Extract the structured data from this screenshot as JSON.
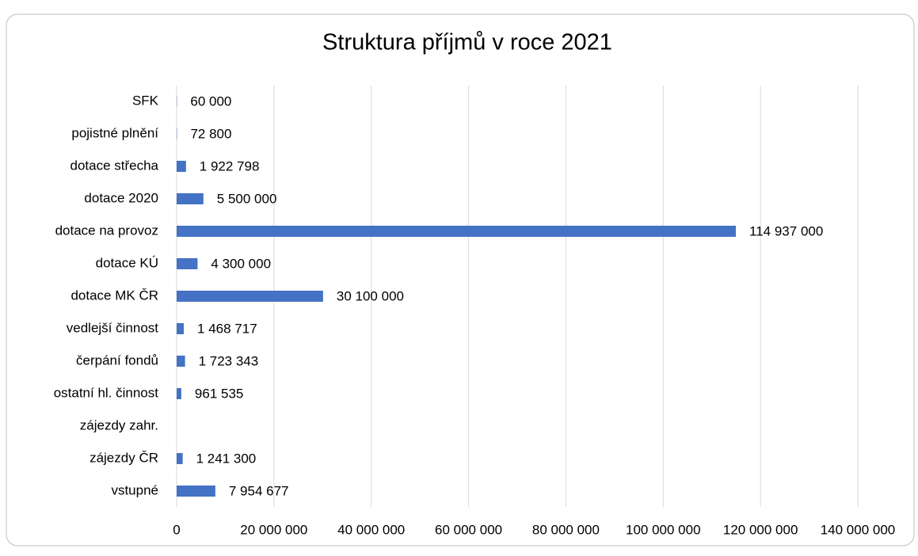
{
  "chart_data": {
    "type": "hbar",
    "title": "Struktura příjmů v roce 2021",
    "categories": [
      "SFK",
      "pojistné plnění",
      "dotace střecha",
      "dotace 2020",
      "dotace na provoz",
      "dotace KÚ",
      "dotace MK ČR",
      "vedlejší činnost",
      "čerpání fondů",
      "ostatní hl. činnost",
      "zájezdy zahr.",
      "zájezdy ČR",
      "vstupné"
    ],
    "values": [
      60000,
      72800,
      1922798,
      5500000,
      114937000,
      4300000,
      30100000,
      1468717,
      1723343,
      961535,
      null,
      1241300,
      7954677
    ],
    "value_labels": [
      "60 000",
      "72 800",
      "1 922 798",
      "5 500 000",
      "114 937 000",
      "4 300 000",
      "30 100 000",
      "1 468 717",
      "1 723 343",
      "961 535",
      null,
      "1 241 300",
      "7 954 677"
    ],
    "color": "#4472c4",
    "xlim": [
      0,
      140000000
    ],
    "xticks": [
      0,
      {
        "value": 20000000,
        "label": "20 000 000"
      },
      {
        "value": 40000000,
        "label": "40 000 000"
      },
      {
        "value": 60000000,
        "label": "60 000 000"
      },
      {
        "value": 80000000,
        "label": "80 000 000"
      },
      {
        "value": 100000000,
        "label": "100 000 000"
      },
      {
        "value": 120000000,
        "label": "120 000 000"
      },
      {
        "value": 140000000,
        "label": "140 000 000"
      }
    ],
    "grid": true
  }
}
